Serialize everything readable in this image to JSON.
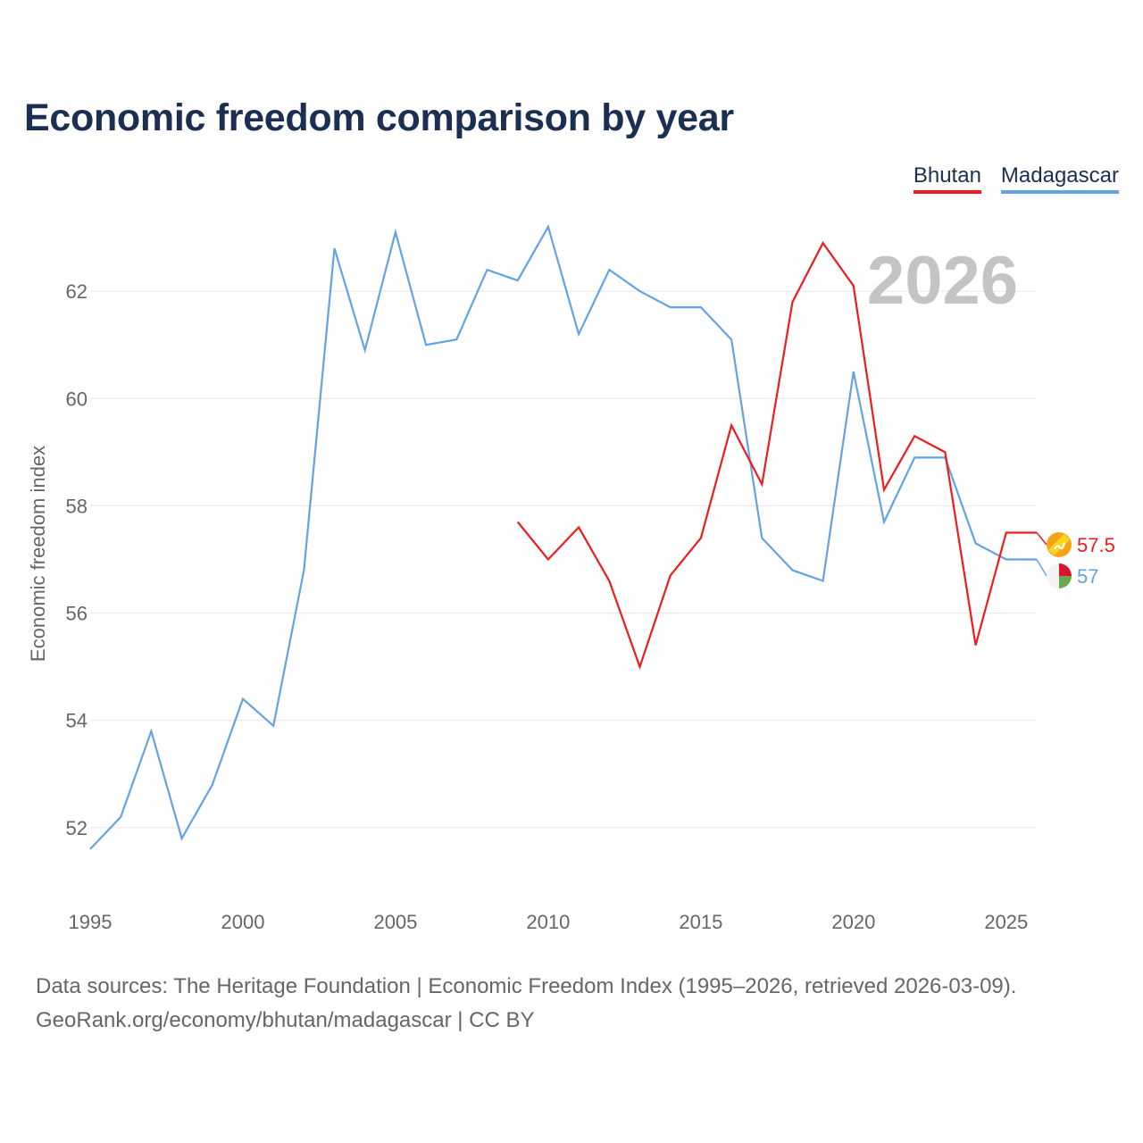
{
  "title": "Economic freedom comparison by year",
  "legend": [
    {
      "name": "Bhutan",
      "color": "#ee1c1c"
    },
    {
      "name": "Madagascar",
      "color": "#62a4e3"
    }
  ],
  "chart_data": {
    "type": "line",
    "title": "Economic freedom comparison by year",
    "xlabel": "",
    "ylabel": "Economic freedom index",
    "xlim": [
      1995,
      2026
    ],
    "ylim": [
      50.7,
      63.6
    ],
    "x_ticks": [
      1995,
      2000,
      2005,
      2010,
      2015,
      2020,
      2025
    ],
    "y_ticks": [
      52,
      54,
      56,
      58,
      60,
      62
    ],
    "grid": true,
    "year_watermark": "2026",
    "series": [
      {
        "name": "Bhutan",
        "color": "#ee1c1c",
        "end_label": "57.5",
        "flag": "bhutan-flag-icon",
        "x": [
          2009,
          2010,
          2011,
          2012,
          2013,
          2014,
          2015,
          2016,
          2017,
          2018,
          2019,
          2020,
          2021,
          2022,
          2023,
          2024,
          2025,
          2026
        ],
        "values": [
          57.7,
          57.0,
          57.6,
          56.6,
          55.0,
          56.7,
          57.4,
          59.5,
          58.4,
          61.8,
          62.9,
          62.1,
          58.3,
          59.3,
          59.0,
          55.4,
          57.5,
          57.5
        ]
      },
      {
        "name": "Madagascar",
        "color": "#62a4e3",
        "end_label": "57",
        "flag": "madagascar-flag-icon",
        "x": [
          1995,
          1996,
          1997,
          1998,
          1999,
          2000,
          2001,
          2002,
          2003,
          2004,
          2005,
          2006,
          2007,
          2008,
          2009,
          2010,
          2011,
          2012,
          2013,
          2014,
          2015,
          2016,
          2017,
          2018,
          2019,
          2020,
          2021,
          2022,
          2023,
          2024,
          2025,
          2026
        ],
        "values": [
          51.6,
          52.2,
          53.8,
          51.8,
          52.8,
          54.4,
          53.9,
          56.8,
          62.8,
          60.9,
          63.1,
          61.0,
          61.1,
          62.4,
          62.2,
          63.2,
          61.2,
          62.4,
          62.0,
          61.7,
          61.7,
          61.1,
          57.4,
          56.8,
          56.6,
          60.5,
          57.7,
          58.9,
          58.9,
          57.3,
          57.0,
          57.0
        ]
      }
    ]
  },
  "footer": {
    "line1": "Data sources: The Heritage Foundation | Economic Freedom Index (1995–2026, retrieved 2026-03-09).",
    "line2": "GeoRank.org/economy/bhutan/madagascar | CC BY"
  }
}
